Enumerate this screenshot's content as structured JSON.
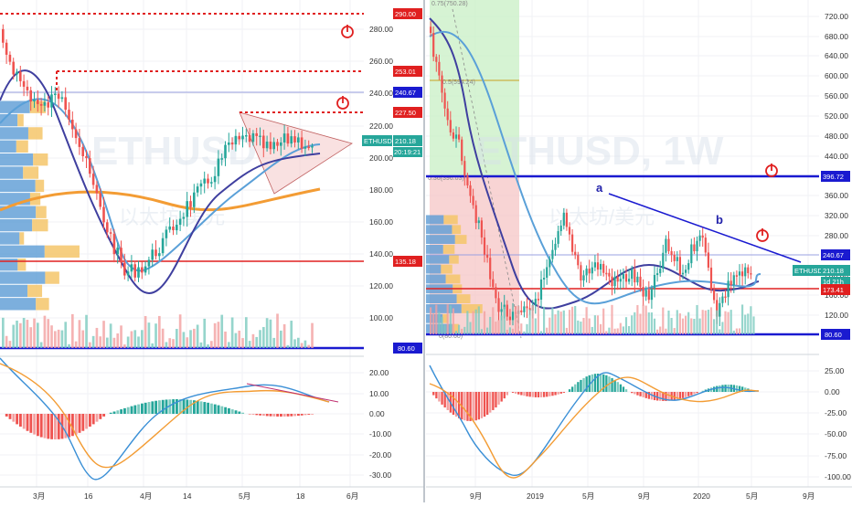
{
  "charts": [
    {
      "symbol": "ETHUSD",
      "watermark_cn": "以太坊/美元",
      "price_ticks": [
        "280.00",
        "260.00",
        "240.00",
        "220.00",
        "200.00",
        "180.00",
        "160.00",
        "140.00",
        "120.00",
        "100.00"
      ],
      "macd_ticks": [
        "20.00",
        "10.00",
        "0.00",
        "-10.00",
        "-20.00",
        "-30.00"
      ],
      "time_ticks": [
        "3月",
        "16",
        "4月",
        "14",
        "5月",
        "18",
        "6月"
      ],
      "tags": {
        "t290": "290.00",
        "t253": "253.01",
        "t240": "240.67",
        "t227": "227.50",
        "last": "210.18",
        "timer": "20:19:21",
        "t135": "135.18",
        "t80": "80.60",
        "sym": "ETHUSD"
      }
    },
    {
      "symbol": "ETHUSD, 1W",
      "watermark_cn": "以太坊/美元",
      "price_ticks": [
        "720.00",
        "680.00",
        "640.00",
        "600.00",
        "560.00",
        "520.00",
        "480.00",
        "440.00",
        "400.00",
        "360.00",
        "320.00",
        "280.00",
        "240.00",
        "200.00",
        "160.00",
        "120.00"
      ],
      "macd_ticks": [
        "25.00",
        "0.00",
        "-25.00",
        "-50.00",
        "-75.00",
        "-100.00"
      ],
      "time_ticks": [
        "9月",
        "2019",
        "5月",
        "9月",
        "2020",
        "5月",
        "9月"
      ],
      "tags": {
        "t396": "396.72",
        "t240": "240.67",
        "last": "210.18",
        "timer": "1d 21h",
        "t173": "173.41",
        "t80": "80.60",
        "sym": "ETHUSD"
      },
      "wave_labels": {
        "a": "a",
        "b": "b"
      },
      "faint_labels": {
        "top": "0.75(750.28)",
        "mid": "0.5(594.24)",
        "low": "0.36(396.03)",
        "bottom": "0(80.60)"
      }
    }
  ],
  "chart_data": [
    {
      "type": "candlestick",
      "title": "ETHUSD",
      "y_axis_ticks": [
        280,
        260,
        240,
        220,
        200,
        180,
        160,
        140,
        120,
        100
      ],
      "x_axis_ticks": [
        "3月",
        "16",
        "4月",
        "14",
        "5月",
        "18",
        "6月"
      ],
      "levels": [
        290.0,
        253.01,
        240.67,
        227.5,
        135.18,
        80.6
      ],
      "last_price": 210.18,
      "countdown": "20:19:21",
      "indicator": {
        "name": "MACD",
        "y_axis_ticks": [
          20,
          10,
          0,
          -10,
          -20,
          -30
        ]
      },
      "colors": {
        "up": "#26a69a",
        "down": "#ef5350",
        "ma_fast": "#3f3f9f",
        "ma_slow": "#5aa0d8",
        "ma_long": "#f39c34",
        "level": "#e02020",
        "support": "#1a1ad0"
      }
    },
    {
      "type": "candlestick",
      "title": "ETHUSD, 1W",
      "y_axis_ticks": [
        720,
        680,
        640,
        600,
        560,
        520,
        480,
        440,
        400,
        360,
        320,
        280,
        240,
        200,
        160,
        120
      ],
      "x_axis_ticks": [
        "9月",
        "2019",
        "5月",
        "9月",
        "2020",
        "5月",
        "9月"
      ],
      "levels": [
        396.72,
        240.67,
        173.41,
        80.6
      ],
      "last_price": 210.18,
      "countdown": "1d 21h",
      "wave_labels": [
        "a",
        "b"
      ],
      "indicator": {
        "name": "MACD",
        "y_axis_ticks": [
          25,
          0,
          -25,
          -50,
          -75,
          -100
        ]
      },
      "colors": {
        "up": "#26a69a",
        "down": "#ef5350",
        "ma_fast": "#3f3f9f",
        "ma_slow": "#5aa0d8",
        "level": "#e02020",
        "support": "#1a1ad0"
      }
    }
  ]
}
